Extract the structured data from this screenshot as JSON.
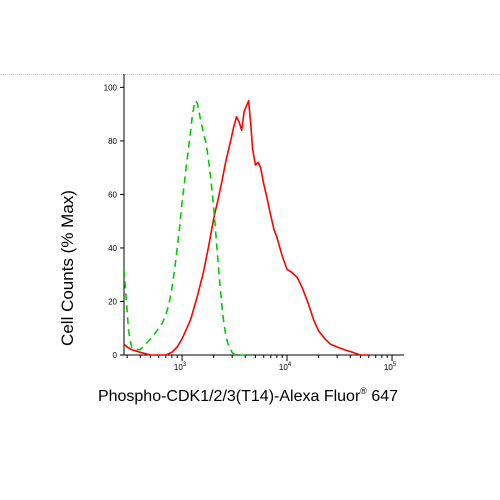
{
  "chart_data": {
    "type": "line",
    "xlabel": {
      "main": "Phospho-CDK1/2/3(T14)-Alexa Fluor",
      "registered": "®",
      "suffix": " 647"
    },
    "ylabel": "Cell Counts (% Max)",
    "x_scale": "log",
    "xlim": [
      280,
      130000
    ],
    "ylim": [
      0,
      105
    ],
    "y_ticks": [
      "0",
      "20",
      "40",
      "60",
      "80",
      "100"
    ],
    "y_tick_values": [
      0,
      20,
      40,
      60,
      80,
      100
    ],
    "x_major_ticks": [
      {
        "value": 1000,
        "base": "10",
        "exp": "3"
      },
      {
        "value": 10000,
        "base": "10",
        "exp": "4"
      },
      {
        "value": 100000,
        "base": "10",
        "exp": "5"
      }
    ],
    "grid": false,
    "legend": "none",
    "series": [
      {
        "color": "#ff0000",
        "style": "solid",
        "x": [
          280,
          300,
          330,
          400,
          500,
          600,
          700,
          800,
          900,
          1000,
          1200,
          1400,
          1600,
          1800,
          2000,
          2200,
          2400,
          2600,
          2900,
          3100,
          3300,
          3500,
          3700,
          3900,
          4100,
          4300,
          4500,
          4700,
          5000,
          5300,
          5600,
          6000,
          6500,
          7000,
          7500,
          8000,
          9000,
          10000,
          11000,
          12500,
          14000,
          16000,
          18000,
          20000,
          23000,
          26000,
          30000,
          35000,
          42000,
          50000,
          60000
        ],
        "y": [
          4,
          3,
          2,
          1,
          0,
          0,
          0,
          1,
          3,
          6,
          13,
          22,
          31,
          41,
          51,
          58,
          65,
          72,
          80,
          85,
          89,
          87,
          84,
          91,
          93,
          95,
          87,
          77,
          71,
          72,
          70,
          64,
          58,
          52,
          47,
          44,
          37,
          32,
          31,
          29,
          25,
          19,
          13,
          9,
          6,
          4,
          3,
          2,
          1,
          0,
          0
        ]
      },
      {
        "color": "#00cc00",
        "style": "dashed",
        "x": [
          280,
          295,
          310,
          330,
          360,
          400,
          450,
          500,
          550,
          600,
          650,
          700,
          750,
          800,
          850,
          900,
          950,
          1000,
          1050,
          1100,
          1150,
          1200,
          1250,
          1300,
          1350,
          1400,
          1450,
          1500,
          1600,
          1700,
          1800,
          1900,
          2000,
          2100,
          2200,
          2300,
          2400,
          2500,
          2600,
          2700,
          2800,
          2900,
          3000,
          3200,
          3400,
          3700,
          4000
        ],
        "y": [
          32,
          20,
          9,
          3,
          2,
          2,
          4,
          6,
          8,
          10,
          12,
          15,
          19,
          25,
          32,
          40,
          48,
          57,
          64,
          71,
          77,
          83,
          89,
          93,
          95,
          94,
          91,
          88,
          83,
          79,
          72,
          64,
          55,
          45,
          35,
          26,
          18,
          12,
          8,
          5,
          3,
          2,
          1,
          0,
          0,
          0,
          0
        ]
      }
    ]
  }
}
